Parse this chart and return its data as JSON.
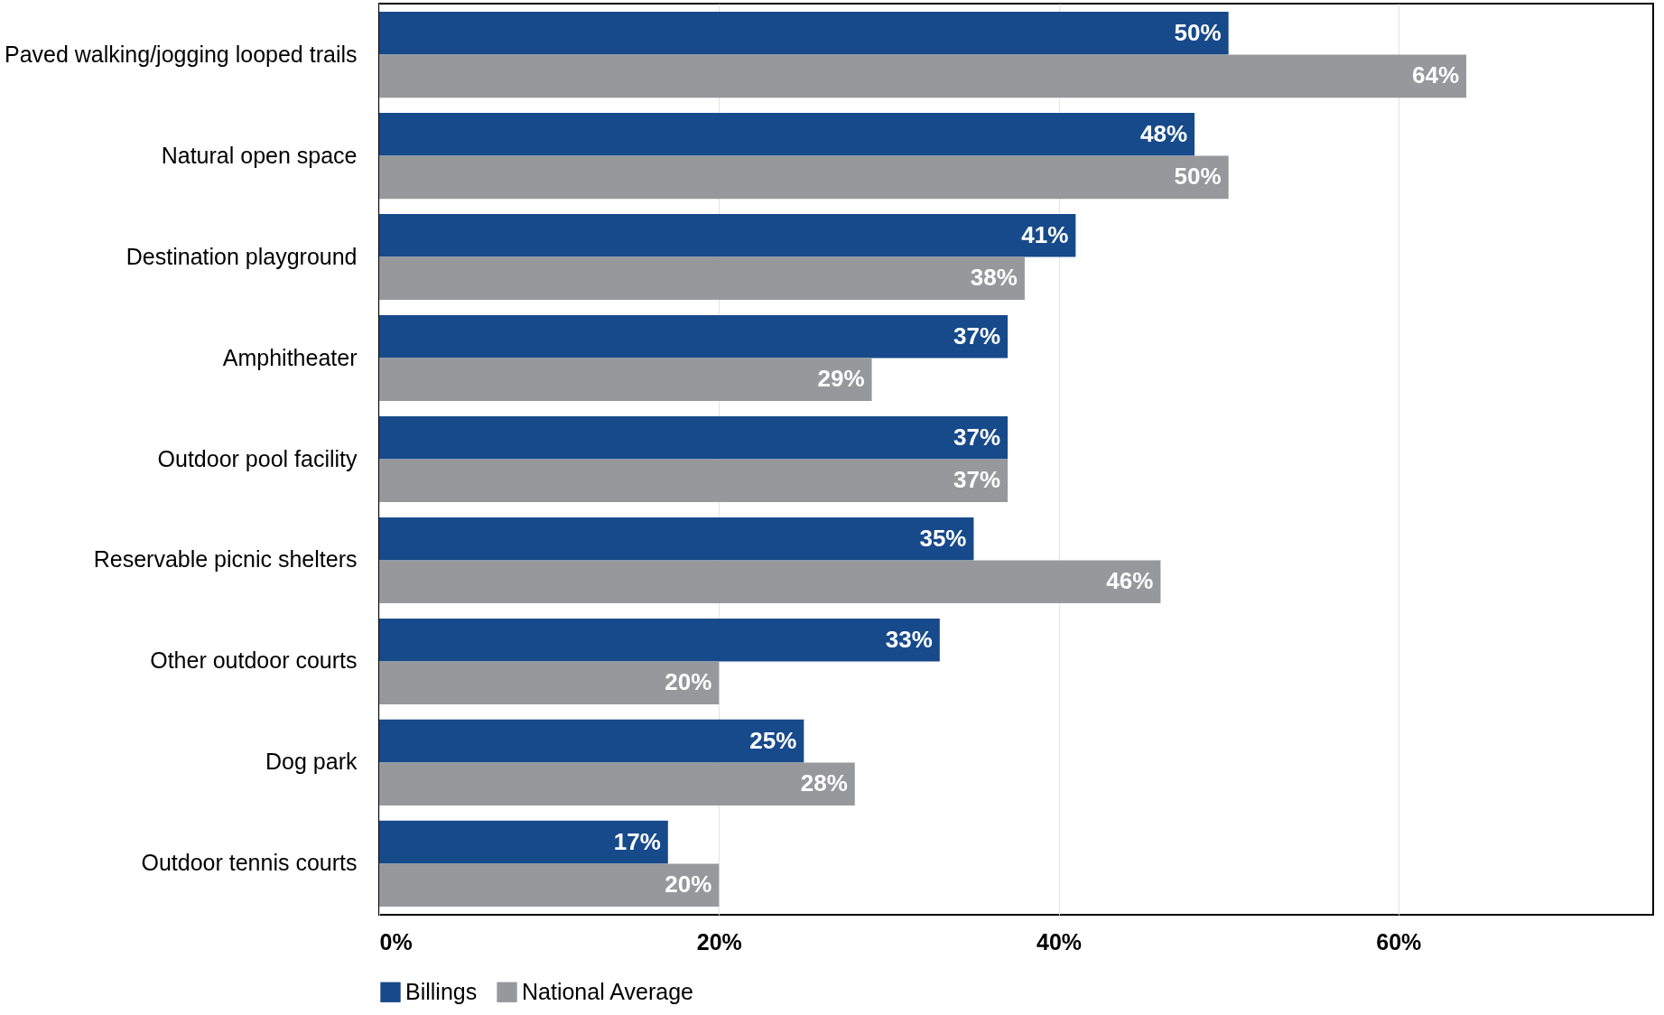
{
  "chart_data": {
    "type": "bar",
    "orientation": "horizontal",
    "categories": [
      "Paved walking/jogging looped trails",
      "Natural open space",
      "Destination playground",
      "Amphitheater",
      "Outdoor pool facility",
      "Reservable picnic shelters",
      "Other outdoor courts",
      "Dog park",
      "Outdoor tennis courts"
    ],
    "series": [
      {
        "name": "Billings",
        "color": "#174a8b",
        "values": [
          50,
          48,
          41,
          37,
          37,
          35,
          33,
          25,
          17
        ],
        "value_labels": [
          "50%",
          "48%",
          "41%",
          "37%",
          "37%",
          "35%",
          "33%",
          "25%",
          "17%"
        ]
      },
      {
        "name": "National Average",
        "color": "#97989b",
        "values": [
          64,
          50,
          38,
          29,
          37,
          46,
          20,
          28,
          20
        ],
        "value_labels": [
          "64%",
          "50%",
          "38%",
          "29%",
          "37%",
          "46%",
          "20%",
          "28%",
          "20%"
        ]
      }
    ],
    "xlim": [
      0,
      75
    ],
    "xticks": [
      {
        "value": 0,
        "label": "0%"
      },
      {
        "value": 20,
        "label": "20%"
      },
      {
        "value": 40,
        "label": "40%"
      },
      {
        "value": 60,
        "label": "60%"
      }
    ],
    "grid": "x",
    "legend": "bottom"
  }
}
